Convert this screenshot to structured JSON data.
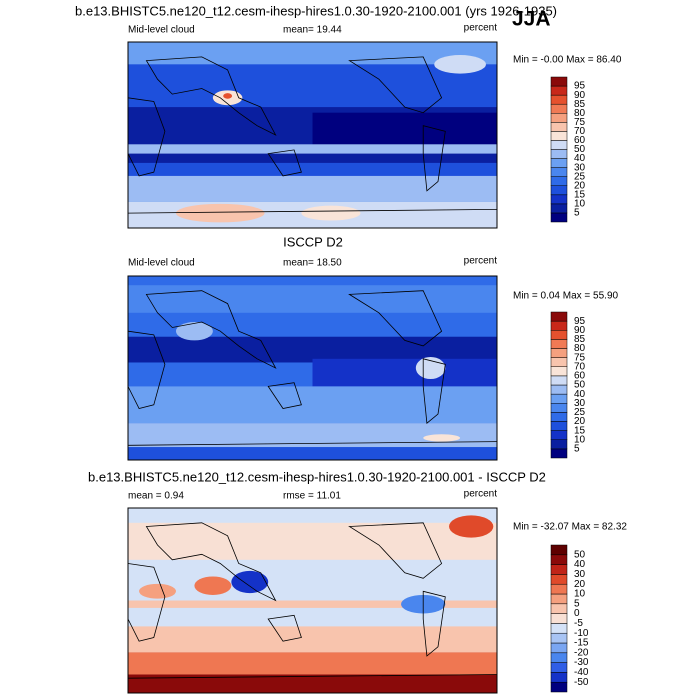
{
  "season": "JJA",
  "panels": [
    {
      "title": "b.e13.BHISTC5.ne120_t12.cesm-ihesp-hires1.0.30-1920-2100.001 (yrs 1926-1935)",
      "variable": "Mid-level cloud",
      "mean": "mean=  19.44",
      "units": "percent",
      "stats": "Min =  -0.00 Max =  86.40",
      "levels": [
        5,
        10,
        15,
        20,
        25,
        30,
        40,
        50,
        60,
        70,
        75,
        80,
        85,
        90,
        95
      ]
    },
    {
      "title": "ISCCP D2",
      "variable": "Mid-level cloud",
      "mean": "mean=  18.50",
      "units": "percent",
      "stats": "Min =   0.04 Max =  55.90",
      "levels": [
        5,
        10,
        15,
        20,
        25,
        30,
        40,
        50,
        60,
        70,
        75,
        80,
        85,
        90,
        95
      ]
    },
    {
      "title": "b.e13.BHISTC5.ne120_t12.cesm-ihesp-hires1.0.30-1920-2100.001 - ISCCP D2",
      "mean": "mean =   0.94",
      "rmse": "rmse =  11.01",
      "units": "percent",
      "stats": "Min = -32.07 Max =  82.32",
      "levels": [
        -50,
        -40,
        -30,
        -20,
        -15,
        -10,
        -5,
        0,
        5,
        10,
        20,
        30,
        40,
        50
      ]
    }
  ]
}
